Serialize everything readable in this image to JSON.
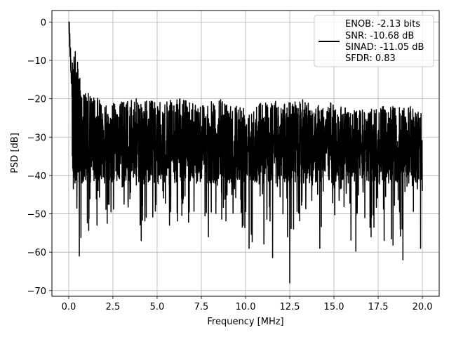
{
  "chart_data": {
    "type": "line",
    "title": "",
    "xlabel": "Frequency [MHz]",
    "ylabel": "PSD [dB]",
    "xlim": [
      -0.95,
      20.95
    ],
    "ylim": [
      -71.5,
      3.0
    ],
    "xticks": [
      0.0,
      2.5,
      5.0,
      7.5,
      10.0,
      12.5,
      15.0,
      17.5,
      20.0
    ],
    "xtick_labels": [
      "0.0",
      "2.5",
      "5.0",
      "7.5",
      "10.0",
      "12.5",
      "15.0",
      "17.5",
      "20.0"
    ],
    "yticks": [
      0,
      -10,
      -20,
      -30,
      -40,
      -50,
      -60,
      -70
    ],
    "ytick_labels": [
      "0",
      "−10",
      "−20",
      "−30",
      "−40",
      "−50",
      "−60",
      "−70"
    ],
    "grid": true,
    "legend_position": "top-right",
    "series": [
      {
        "name": "ENOB: -2.13 bits\nSNR: -10.68 dB\nSINAD: -11.05 dB\nSFDR: 0.83",
        "color": "#000000",
        "x_range": [
          0.0,
          20.0
        ],
        "envelope_upper": [
          0,
          -18,
          -20,
          -21,
          -20,
          -20,
          -21,
          -20,
          -20,
          -21,
          -20,
          -21,
          -21,
          -20,
          -21,
          -20,
          -21,
          -21,
          -22,
          -23,
          -22,
          -22,
          -22,
          -22
        ],
        "envelope_lower": [
          -44,
          -61,
          -53,
          -53,
          -48,
          -57,
          -48,
          -53,
          -53,
          -53,
          -52,
          -52,
          -59,
          -68,
          -59,
          -55,
          -54,
          -55,
          -56,
          -62,
          -59,
          -59,
          -60,
          -48
        ],
        "baseline": -30,
        "spikes": [
          {
            "x": 0.03,
            "y": 0
          },
          {
            "x": 0.6,
            "y": -61
          },
          {
            "x": 1.6,
            "y": -53
          },
          {
            "x": 4.1,
            "y": -57
          },
          {
            "x": 5.7,
            "y": -53
          },
          {
            "x": 7.9,
            "y": -56
          },
          {
            "x": 10.2,
            "y": -59
          },
          {
            "x": 12.5,
            "y": -68
          },
          {
            "x": 14.2,
            "y": -59
          },
          {
            "x": 17.1,
            "y": -56
          },
          {
            "x": 18.9,
            "y": -62
          },
          {
            "x": 19.9,
            "y": -59
          }
        ]
      }
    ]
  },
  "legend": {
    "lines": [
      "ENOB: -2.13 bits",
      "SNR: -10.68 dB",
      "SINAD: -11.05 dB",
      "SFDR: 0.83"
    ]
  },
  "colors": {
    "line": "#000000",
    "grid": "#b0b0b0",
    "axes": "#000000",
    "background": "#ffffff"
  }
}
